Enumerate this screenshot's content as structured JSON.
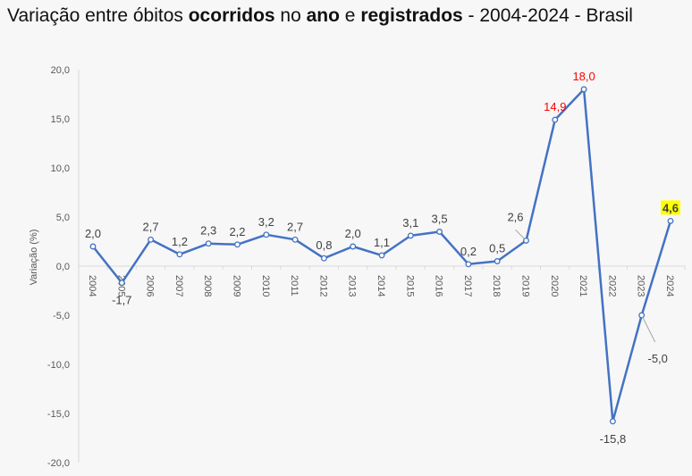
{
  "title": {
    "parts": [
      {
        "text": "Variação entre óbitos ",
        "bold": false
      },
      {
        "text": "ocorridos",
        "bold": true
      },
      {
        "text": " no ",
        "bold": false
      },
      {
        "text": "ano",
        "bold": true
      },
      {
        "text": " e ",
        "bold": false
      },
      {
        "text": "registrados",
        "bold": true
      },
      {
        "text": " - 2004-2024 - Brasil",
        "bold": false
      }
    ]
  },
  "chart_data": {
    "type": "line",
    "title": "Variação entre óbitos ocorridos no ano e registrados - 2004-2024 - Brasil",
    "xlabel": "",
    "ylabel": "Variação (%)",
    "ylim": [
      -20,
      20
    ],
    "yticks": [
      "20,0",
      "15,0",
      "10,0",
      "5,0",
      "0,0",
      "-5,0",
      "-10,0",
      "-15,0",
      "-20,0"
    ],
    "ytick_values": [
      20,
      15,
      10,
      5,
      0,
      -5,
      -10,
      -15,
      -20
    ],
    "grid": false,
    "categories": [
      "2004",
      "2005",
      "2006",
      "2007",
      "2008",
      "2009",
      "2010",
      "2011",
      "2012",
      "2013",
      "2014",
      "2015",
      "2016",
      "2017",
      "2018",
      "2019",
      "2020",
      "2021",
      "2022",
      "2023",
      "2024"
    ],
    "values": [
      2.0,
      -1.7,
      2.7,
      1.2,
      2.3,
      2.2,
      3.2,
      2.7,
      0.8,
      2.0,
      1.1,
      3.1,
      3.5,
      0.2,
      0.5,
      2.6,
      14.9,
      18.0,
      -15.8,
      -5.0,
      4.6
    ],
    "data_labels": [
      "2,0",
      "-1,7",
      "2,7",
      "1,2",
      "2,3",
      "2,2",
      "3,2",
      "2,7",
      "0,8",
      "2,0",
      "1,1",
      "3,1",
      "3,5",
      "0,2",
      "0,5",
      "2,6",
      "14,9",
      "18,0",
      "-15,8",
      "-5,0",
      "4,6"
    ],
    "line_color": "#4472c4",
    "highlight_red": [
      "2020",
      "2021"
    ],
    "highlight_color": "#ff0000",
    "highlight_yellow": [
      "2024"
    ],
    "highlight_yellow_color": "#ffff00"
  }
}
